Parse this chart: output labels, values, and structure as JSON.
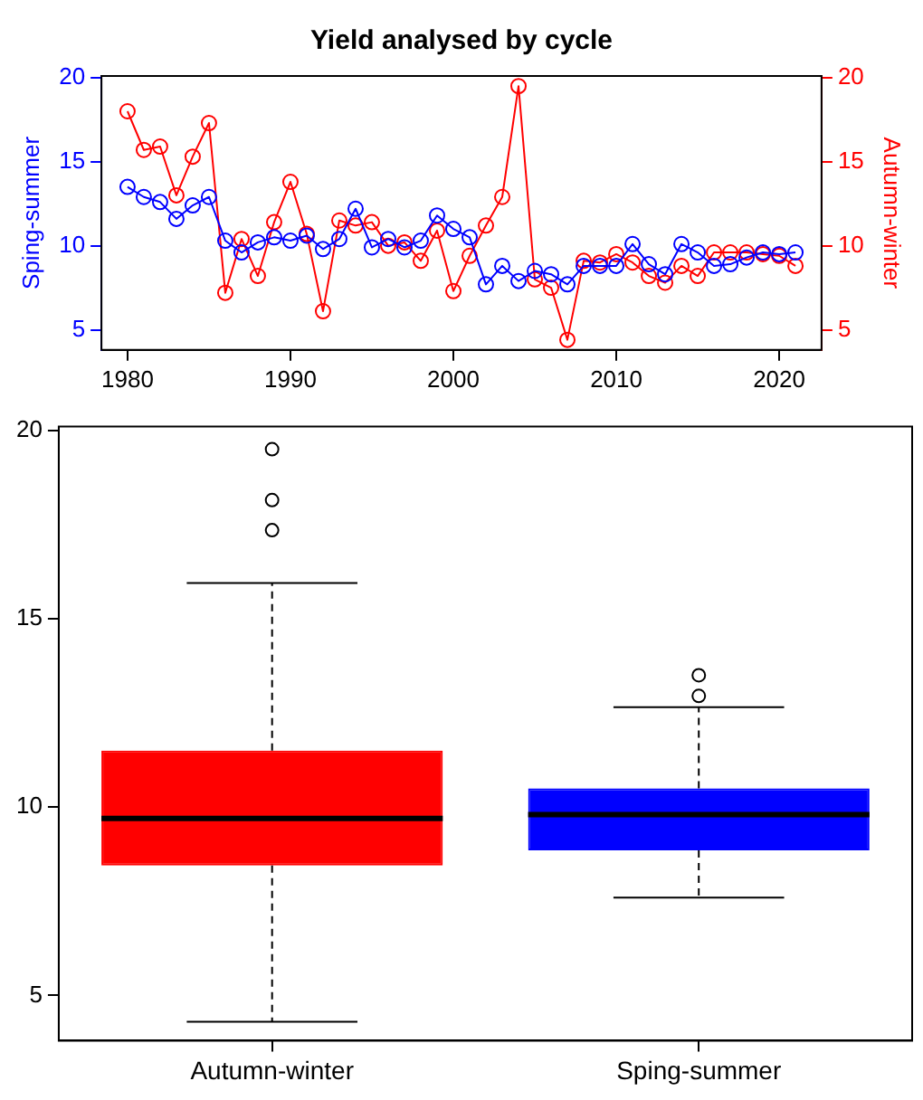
{
  "chart_data": [
    {
      "type": "line",
      "title": "Yield analysed by cycle",
      "ylabel": "Sping-summer",
      "y2label": "Autumn-winter",
      "marker": "circle",
      "x": [
        1980,
        1981,
        1982,
        1983,
        1984,
        1985,
        1986,
        1987,
        1988,
        1989,
        1990,
        1991,
        1992,
        1993,
        1994,
        1995,
        1996,
        1997,
        1998,
        1999,
        2000,
        2001,
        2002,
        2003,
        2004,
        2005,
        2006,
        2007,
        2008,
        2009,
        2010,
        2011,
        2012,
        2013,
        2014,
        2015,
        2016,
        2017,
        2018,
        2019,
        2020,
        2021
      ],
      "series": [
        {
          "color": "#0000ff",
          "axis": "y",
          "values": [
            13.5,
            12.9,
            12.6,
            11.6,
            12.4,
            12.9,
            10.3,
            9.6,
            10.2,
            10.5,
            10.3,
            10.6,
            9.8,
            10.4,
            12.2,
            9.9,
            10.4,
            9.9,
            10.3,
            11.8,
            11.0,
            10.5,
            7.7,
            8.8,
            7.9,
            8.5,
            8.3,
            7.7,
            8.8,
            8.8,
            8.8,
            10.1,
            8.9,
            8.3,
            10.1,
            9.6,
            8.8,
            8.9,
            9.3,
            9.6,
            9.5,
            9.6
          ]
        },
        {
          "color": "#ff0000",
          "axis": "y2",
          "values": [
            18.0,
            15.7,
            15.9,
            13.0,
            15.3,
            17.3,
            7.2,
            10.4,
            8.2,
            11.4,
            13.8,
            10.7,
            6.1,
            11.5,
            11.2,
            11.4,
            10.0,
            10.2,
            9.1,
            10.9,
            7.3,
            9.4,
            11.2,
            12.9,
            19.5,
            8.0,
            7.5,
            4.4,
            9.1,
            9.0,
            9.5,
            9.0,
            8.2,
            7.8,
            8.8,
            8.2,
            9.6,
            9.6,
            9.6,
            9.5,
            9.4,
            8.8
          ]
        }
      ],
      "xlim": [
        1978.4,
        2022.6
      ],
      "xticks": [
        1980,
        1990,
        2000,
        2010,
        2020
      ],
      "ylim": [
        3.8,
        20.1
      ],
      "yticks": [
        5,
        10,
        15,
        20
      ],
      "y2lim": [
        3.8,
        20.1
      ],
      "y2ticks": [
        5,
        10,
        15,
        20
      ]
    },
    {
      "type": "box",
      "categories": [
        "Autumn-winter",
        "Sping-summer"
      ],
      "colors": [
        "#ff0000",
        "#0000ff"
      ],
      "boxes": [
        {
          "low": 4.3,
          "q1": 8.45,
          "median": 9.7,
          "q3": 11.5,
          "high": 15.95,
          "outliers": [
            17.35,
            18.15,
            19.5
          ]
        },
        {
          "low": 7.6,
          "q1": 8.85,
          "median": 9.8,
          "q3": 10.5,
          "high": 12.65,
          "outliers": [
            12.95,
            13.5
          ]
        }
      ],
      "ylim": [
        3.8,
        20.1
      ],
      "yticks": [
        5,
        10,
        15,
        20
      ]
    }
  ]
}
